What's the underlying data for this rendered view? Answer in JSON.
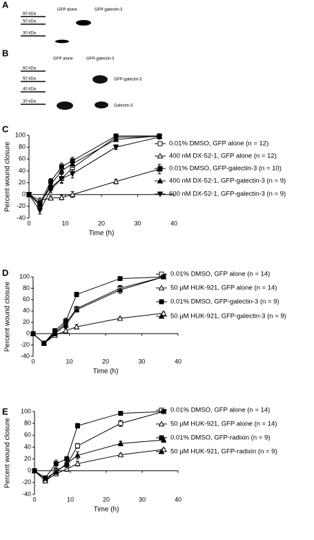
{
  "blots": [
    {
      "panel": "A",
      "lanes": [
        "GFP alone",
        "GFP-galectin-3"
      ],
      "markers": [
        "60 kDa",
        "50 kDa",
        "30 kDa"
      ]
    },
    {
      "panel": "B",
      "lanes": [
        "GFP alone",
        "GFP-galectin-3"
      ],
      "markers": [
        "60 kDa",
        "50 kDa",
        "40 kDa",
        "30 kDa"
      ],
      "bands": [
        "GFP-galectin-3",
        "Galectin-3"
      ]
    }
  ],
  "chart_data": [
    {
      "type": "line",
      "panel": "C",
      "xlabel": "Time (h)",
      "ylabel": "Percent wound closure",
      "x": [
        0,
        3,
        6,
        9,
        12,
        24,
        36
      ],
      "xlim": [
        0,
        40
      ],
      "xticks": [
        0,
        10,
        20,
        30,
        40
      ],
      "ylim": [
        -40,
        100
      ],
      "yticks": [
        -40,
        -20,
        0,
        20,
        40,
        60,
        80,
        100
      ],
      "series": [
        {
          "name": "0.01% DMSO, GFP alone (n = 12)",
          "color": "#000000",
          "marker": "square-open",
          "values": [
            0,
            -15,
            12,
            27,
            45,
            97,
            98
          ],
          "errors": [
            0,
            5,
            5,
            8,
            6,
            3,
            3
          ]
        },
        {
          "name": "400 nM DX-52-1, GFP alone (n = 12)",
          "color": "#000000",
          "marker": "triangle-open",
          "values": [
            0,
            -10,
            -6,
            -5,
            0,
            22,
            43
          ],
          "errors": [
            0,
            4,
            3,
            4,
            5,
            4,
            8
          ]
        },
        {
          "name": "0.01% DMSO, GFP-galectin-3 (n = 10)",
          "color": "#000000",
          "marker": "square",
          "values": [
            0,
            -15,
            22,
            47,
            57,
            99,
            99
          ],
          "errors": [
            0,
            5,
            5,
            6,
            6,
            2,
            2
          ]
        },
        {
          "name": "400 nM DX-52-1, GFP-galectin-3 (n = 9)",
          "color": "#000000",
          "marker": "triangle",
          "values": [
            0,
            -18,
            17,
            40,
            52,
            93,
            99
          ],
          "errors": [
            0,
            5,
            5,
            6,
            6,
            3,
            2
          ]
        },
        {
          "name": "600 nM DX-52-1, GFP-galectin-3 (n = 9)",
          "color": "#000000",
          "marker": "triangle-down",
          "values": [
            0,
            -27,
            8,
            27,
            35,
            80,
            97
          ],
          "errors": [
            0,
            6,
            5,
            7,
            7,
            4,
            3
          ]
        }
      ]
    },
    {
      "type": "line",
      "panel": "D",
      "xlabel": "Time (h)",
      "ylabel": "Percent wound closure",
      "x": [
        0,
        3,
        6,
        9,
        12,
        24,
        36
      ],
      "xlim": [
        0,
        40
      ],
      "xticks": [
        0,
        10,
        20,
        30,
        40
      ],
      "ylim": [
        -40,
        100
      ],
      "yticks": [
        -40,
        -20,
        0,
        20,
        40,
        60,
        80,
        100
      ],
      "series": [
        {
          "name": "0.01% DMSO, GFP alone (n = 14)",
          "color": "#000000",
          "marker": "square-open",
          "values": [
            0,
            -17,
            2,
            18,
            44,
            80,
            100
          ],
          "errors": [
            0,
            3,
            4,
            4,
            4,
            5,
            2
          ]
        },
        {
          "name": "50 μM HUK-921, GFP alone (n = 14)",
          "color": "#000000",
          "marker": "triangle-open",
          "values": [
            0,
            -17,
            -3,
            5,
            12,
            27,
            36
          ],
          "errors": [
            0,
            3,
            3,
            4,
            4,
            2,
            2
          ]
        },
        {
          "name": "0.01% DMSO, GFP-galectin-3 (n = 9)",
          "color": "#000000",
          "marker": "square",
          "values": [
            0,
            -17,
            5,
            22,
            69,
            97,
            100
          ],
          "errors": [
            0,
            3,
            4,
            5,
            4,
            2,
            2
          ]
        },
        {
          "name": "50 μM HUK-921, GFP-galectin-3 (n = 9)",
          "color": "#000000",
          "marker": "triangle",
          "values": [
            0,
            -17,
            0,
            15,
            42,
            77,
            100
          ],
          "errors": [
            0,
            3,
            4,
            5,
            4,
            6,
            2
          ]
        }
      ]
    },
    {
      "type": "line",
      "panel": "E",
      "xlabel": "Time (h)",
      "ylabel": "Percent wound closure",
      "x": [
        0,
        3,
        6,
        9,
        12,
        24,
        36
      ],
      "xlim": [
        0,
        40
      ],
      "xticks": [
        0,
        10,
        20,
        30,
        40
      ],
      "ylim": [
        -40,
        100
      ],
      "yticks": [
        -40,
        -20,
        0,
        20,
        40,
        60,
        80,
        100
      ],
      "series": [
        {
          "name": "0.01% DMSO, GFP alone (n = 14)",
          "color": "#000000",
          "marker": "square-open",
          "values": [
            0,
            -17,
            0,
            10,
            42,
            80,
            100
          ],
          "errors": [
            0,
            3,
            4,
            4,
            4,
            5,
            2
          ]
        },
        {
          "name": "50 μM HUK-921, GFP alone (n = 14)",
          "color": "#000000",
          "marker": "triangle-open",
          "values": [
            0,
            -17,
            -5,
            3,
            12,
            27,
            36
          ],
          "errors": [
            0,
            3,
            3,
            4,
            4,
            2,
            2
          ]
        },
        {
          "name": "0.01% DMSO, GFP-radixin (n = 9)",
          "color": "#000000",
          "marker": "square",
          "values": [
            0,
            -12,
            12,
            20,
            76,
            97,
            100
          ],
          "errors": [
            0,
            3,
            6,
            4,
            4,
            2,
            2
          ]
        },
        {
          "name": "50 μM HUK-921, GFP-radixin (n = 9)",
          "color": "#000000",
          "marker": "triangle",
          "values": [
            0,
            -13,
            -2,
            12,
            26,
            46,
            52
          ],
          "errors": [
            0,
            3,
            4,
            5,
            6,
            4,
            4
          ]
        }
      ]
    }
  ]
}
